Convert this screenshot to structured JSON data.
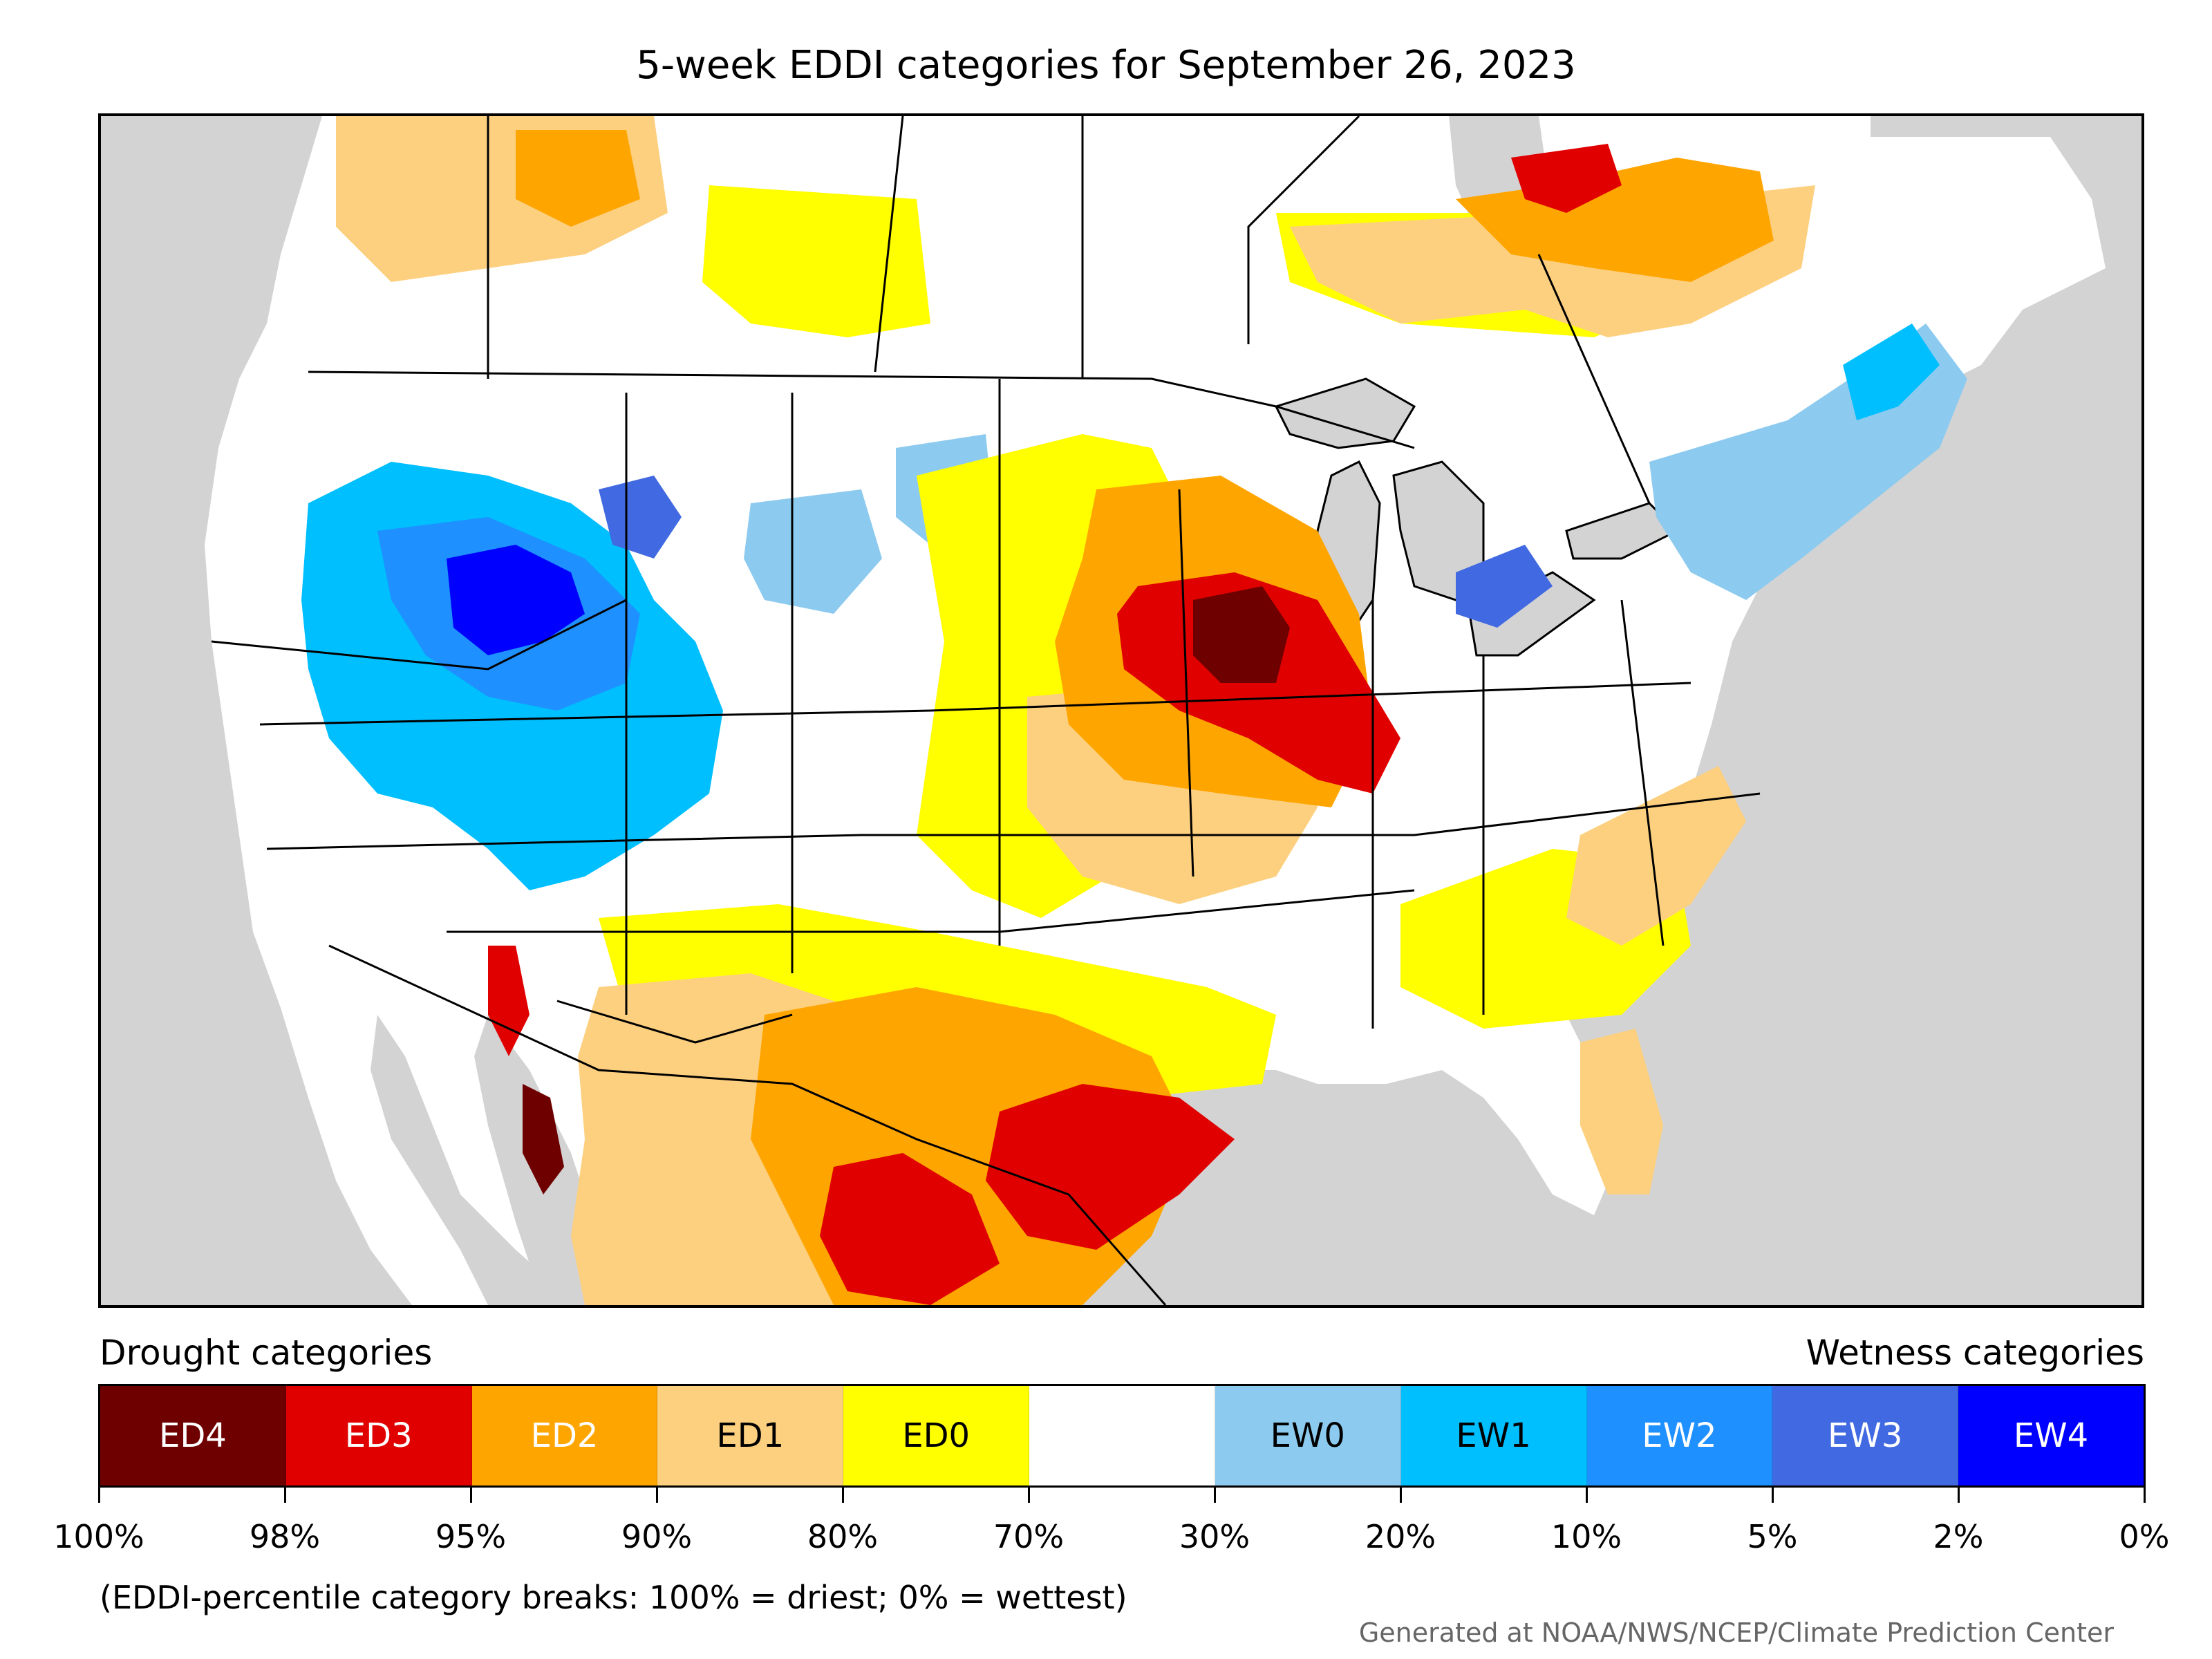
{
  "title": "5-week EDDI categories for September 26, 2023",
  "headings": {
    "drought": "Drought categories",
    "wetness": "Wetness categories"
  },
  "legend": [
    {
      "label": "ED4",
      "color": "#6e0000",
      "text_color": "#ffffff"
    },
    {
      "label": "ED3",
      "color": "#e00000",
      "text_color": "#ffffff"
    },
    {
      "label": "ED2",
      "color": "#ffa500",
      "text_color": "#ffffff"
    },
    {
      "label": "ED1",
      "color": "#fdd080",
      "text_color": "#000000"
    },
    {
      "label": "ED0",
      "color": "#ffff00",
      "text_color": "#000000"
    },
    {
      "label": "",
      "color": "#ffffff",
      "text_color": "#000000"
    },
    {
      "label": "EW0",
      "color": "#8ccaef",
      "text_color": "#000000"
    },
    {
      "label": "EW1",
      "color": "#00bfff",
      "text_color": "#000000"
    },
    {
      "label": "EW2",
      "color": "#1e90ff",
      "text_color": "#ffffff"
    },
    {
      "label": "EW3",
      "color": "#4169e1",
      "text_color": "#ffffff"
    },
    {
      "label": "EW4",
      "color": "#0000ff",
      "text_color": "#ffffff"
    }
  ],
  "tick_labels": [
    "100%",
    "98%",
    "95%",
    "90%",
    "80%",
    "70%",
    "30%",
    "20%",
    "10%",
    "5%",
    "2%",
    "0%"
  ],
  "footnote": "(EDDI-percentile category breaks: 100% = driest; 0% = wettest)",
  "credit": "Generated at NOAA/NWS/NCEP/Climate Prediction Center",
  "map_colors": {
    "outside": "#d3d3d3",
    "land": "#ffffff",
    "water": "#d3d3d3",
    "boundary": "#000000"
  }
}
